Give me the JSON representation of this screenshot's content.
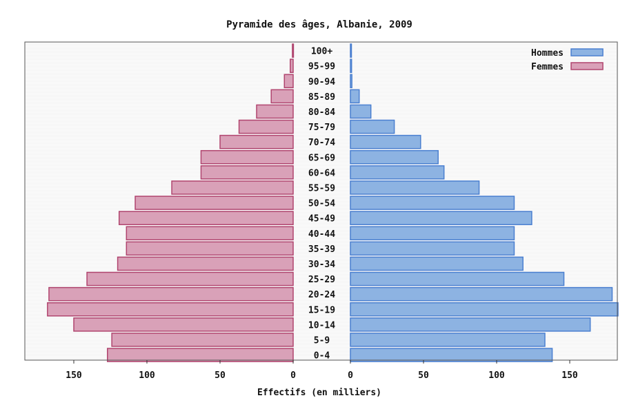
{
  "chart_data": {
    "type": "bar",
    "title": "Pyramide des âges, Albanie, 2009",
    "xlabel": "Effectifs (en milliers)",
    "categories": [
      "0-4",
      "5-9",
      "10-14",
      "15-19",
      "20-24",
      "25-29",
      "30-34",
      "35-39",
      "40-44",
      "45-49",
      "50-54",
      "55-59",
      "60-64",
      "65-69",
      "70-74",
      "75-79",
      "80-84",
      "85-89",
      "90-94",
      "95-99",
      "100+"
    ],
    "series": [
      {
        "name": "Hommes",
        "color": "#8db3e2",
        "edge": "#4a7fd0",
        "values": [
          138,
          133,
          164,
          183,
          179,
          146,
          118,
          112,
          112,
          124,
          112,
          88,
          64,
          60,
          48,
          30,
          14,
          6,
          1,
          0.8,
          0.6
        ]
      },
      {
        "name": "Femmes",
        "color": "#d9a1b8",
        "edge": "#b0446e",
        "values": [
          127,
          124,
          150,
          168,
          167,
          141,
          120,
          114,
          114,
          119,
          108,
          83,
          63,
          63,
          50,
          37,
          25,
          15,
          6,
          2,
          0.5
        ]
      }
    ],
    "xlim": [
      0,
      180
    ],
    "xticks": [
      150,
      100,
      50,
      0
    ],
    "xticks_right": [
      0,
      50,
      100,
      150
    ],
    "legend_position": "top-right",
    "grid": false
  }
}
